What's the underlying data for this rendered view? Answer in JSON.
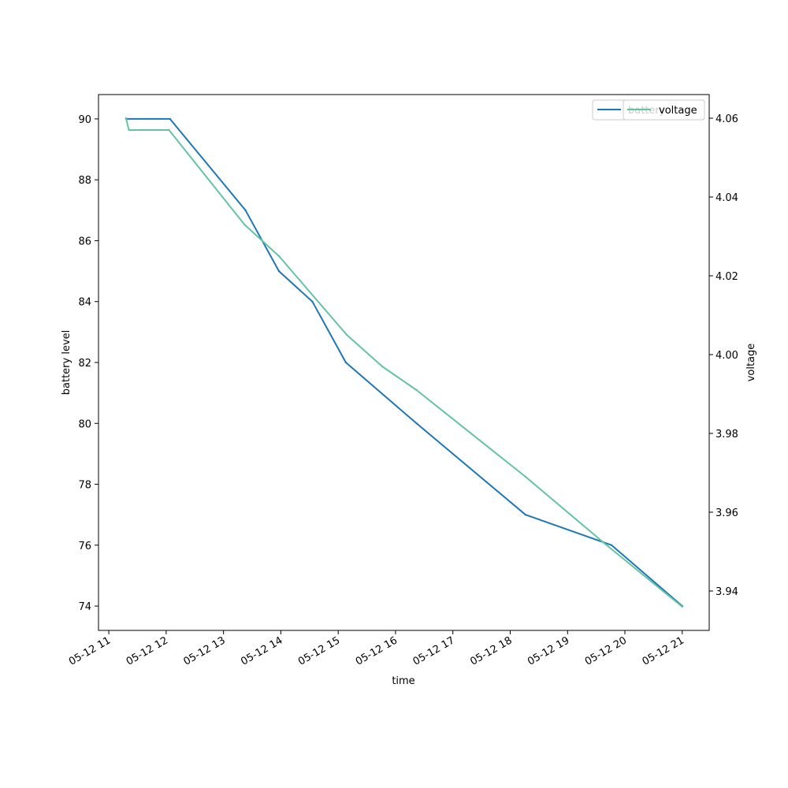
{
  "chart_data": {
    "type": "line",
    "xlabel": "time",
    "ylabel_left": "battery level",
    "ylabel_right": "voltage",
    "x_ticks": [
      "05-12 11",
      "05-12 12",
      "05-12 13",
      "05-12 14",
      "05-12 15",
      "05-12 16",
      "05-12 17",
      "05-12 18",
      "05-12 19",
      "05-12 20",
      "05-12 21"
    ],
    "x_range_hours": [
      10.82,
      21.47
    ],
    "y_left_ticks": [
      74,
      76,
      78,
      80,
      82,
      84,
      86,
      88,
      90
    ],
    "y_left_range": [
      73.2,
      90.8
    ],
    "y_right_ticks": [
      3.94,
      3.96,
      3.98,
      4.0,
      4.02,
      4.04,
      4.06
    ],
    "y_right_range": [
      3.93,
      4.066
    ],
    "grid": false,
    "legend_position": "top-right",
    "series": [
      {
        "name": "battery",
        "axis": "left",
        "color": "#1f77b4",
        "x": [
          "05-12 11:18",
          "05-12 12:04",
          "05-12 13:23",
          "05-12 13:58",
          "05-12 14:33",
          "05-12 15:08",
          "05-12 16:22",
          "05-12 18:16",
          "05-12 19:46",
          "05-12 21:00"
        ],
        "values": [
          90,
          90,
          87,
          85,
          84,
          82,
          80,
          77,
          76,
          74
        ]
      },
      {
        "name": "voltage",
        "axis": "right",
        "color": "#66c2a5",
        "x": [
          "05-12 11:18",
          "05-12 11:21",
          "05-12 12:03",
          "05-12 13:22",
          "05-12 13:58",
          "05-12 15:09",
          "05-12 15:46",
          "05-12 16:22",
          "05-12 18:16",
          "05-12 19:39",
          "05-12 21:00"
        ],
        "values": [
          4.06,
          4.057,
          4.057,
          4.033,
          4.025,
          4.005,
          3.997,
          3.991,
          3.969,
          3.952,
          3.936
        ]
      }
    ]
  }
}
